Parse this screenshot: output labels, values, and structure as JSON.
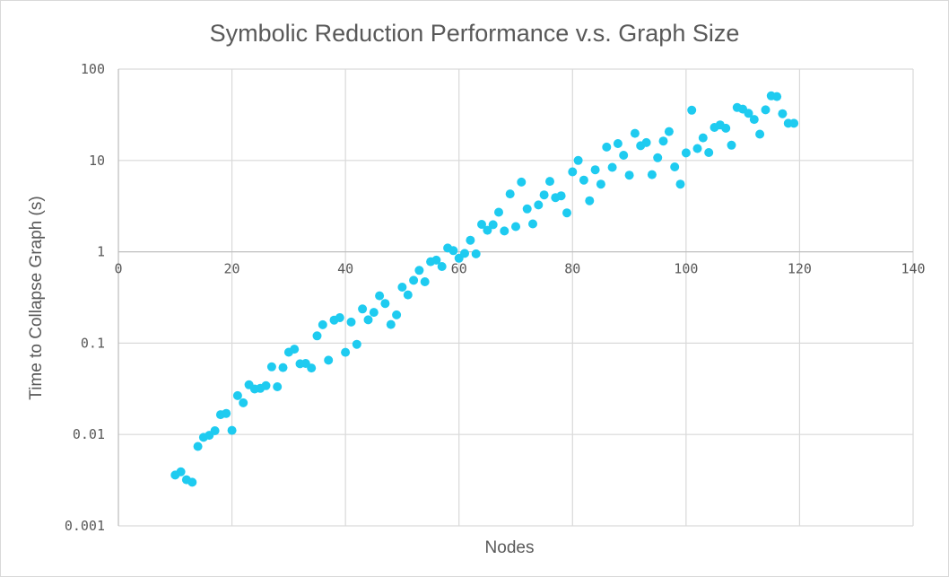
{
  "chart_data": {
    "type": "scatter",
    "title": "Symbolic Reduction Performance v.s. Graph Size",
    "xlabel": "Nodes",
    "ylabel": "Time to Collapse Graph (s)",
    "xlim": [
      0,
      140
    ],
    "ylim": [
      0.001,
      100
    ],
    "y_scale": "log",
    "grid": true,
    "legend": "none",
    "marker_color": "#1ecbf0",
    "x_ticks": [
      "0",
      "20",
      "40",
      "60",
      "80",
      "100",
      "120",
      "140"
    ],
    "x_tick_values": [
      0,
      20,
      40,
      60,
      80,
      100,
      120,
      140
    ],
    "y_ticks": [
      "0.001",
      "0.01",
      "0.1",
      "1",
      "10",
      "100"
    ],
    "y_tick_values": [
      0.001,
      0.01,
      0.1,
      1,
      10,
      100
    ],
    "points": [
      [
        10,
        0.0036
      ],
      [
        11,
        0.0039
      ],
      [
        12,
        0.0032
      ],
      [
        13,
        0.003
      ],
      [
        14,
        0.0074
      ],
      [
        15,
        0.0093
      ],
      [
        16,
        0.0098
      ],
      [
        17,
        0.011
      ],
      [
        18,
        0.0165
      ],
      [
        19,
        0.017
      ],
      [
        20,
        0.0111
      ],
      [
        21,
        0.0266
      ],
      [
        22,
        0.0222
      ],
      [
        23,
        0.035
      ],
      [
        24,
        0.0315
      ],
      [
        25,
        0.032
      ],
      [
        26,
        0.0342
      ],
      [
        27,
        0.055
      ],
      [
        28,
        0.0333
      ],
      [
        29,
        0.054
      ],
      [
        30,
        0.0796
      ],
      [
        31,
        0.086
      ],
      [
        32,
        0.0595
      ],
      [
        33,
        0.06
      ],
      [
        34,
        0.0534
      ],
      [
        35,
        0.12
      ],
      [
        36,
        0.159
      ],
      [
        37,
        0.065
      ],
      [
        38,
        0.179
      ],
      [
        39,
        0.19
      ],
      [
        40,
        0.0794
      ],
      [
        41,
        0.17
      ],
      [
        42,
        0.0972
      ],
      [
        43,
        0.237
      ],
      [
        44,
        0.18
      ],
      [
        45,
        0.217
      ],
      [
        46,
        0.33
      ],
      [
        47,
        0.272
      ],
      [
        48,
        0.16
      ],
      [
        49,
        0.204
      ],
      [
        50,
        0.41
      ],
      [
        51,
        0.338
      ],
      [
        52,
        0.487
      ],
      [
        53,
        0.626
      ],
      [
        54,
        0.47
      ],
      [
        55,
        0.78
      ],
      [
        56,
        0.81
      ],
      [
        57,
        0.69
      ],
      [
        58,
        1.1
      ],
      [
        59,
        1.03
      ],
      [
        60,
        0.85
      ],
      [
        61,
        0.96
      ],
      [
        62,
        1.34
      ],
      [
        63,
        0.95
      ],
      [
        64,
        2.0
      ],
      [
        65,
        1.72
      ],
      [
        66,
        1.98
      ],
      [
        67,
        2.71
      ],
      [
        68,
        1.69
      ],
      [
        69,
        4.3
      ],
      [
        70,
        1.89
      ],
      [
        71,
        5.8
      ],
      [
        72,
        2.95
      ],
      [
        73,
        2.02
      ],
      [
        74,
        3.26
      ],
      [
        75,
        4.2
      ],
      [
        76,
        5.9
      ],
      [
        77,
        3.92
      ],
      [
        78,
        4.1
      ],
      [
        79,
        2.67
      ],
      [
        80,
        7.5
      ],
      [
        81,
        10.0
      ],
      [
        82,
        6.1
      ],
      [
        83,
        3.62
      ],
      [
        84,
        7.9
      ],
      [
        85,
        5.5
      ],
      [
        86,
        14.0
      ],
      [
        87,
        8.4
      ],
      [
        88,
        15.3
      ],
      [
        89,
        11.4
      ],
      [
        90,
        6.9
      ],
      [
        91,
        19.8
      ],
      [
        92,
        14.5
      ],
      [
        93,
        15.7
      ],
      [
        94,
        7.0
      ],
      [
        95,
        10.7
      ],
      [
        96,
        16.3
      ],
      [
        97,
        20.7
      ],
      [
        98,
        8.5
      ],
      [
        99,
        5.5
      ],
      [
        100,
        12.1
      ],
      [
        101,
        35.5
      ],
      [
        102,
        13.5
      ],
      [
        103,
        17.7
      ],
      [
        104,
        12.2
      ],
      [
        105,
        23.0
      ],
      [
        106,
        24.5
      ],
      [
        107,
        22.5
      ],
      [
        108,
        14.7
      ],
      [
        109,
        38.0
      ],
      [
        110,
        36.5
      ],
      [
        111,
        32.8
      ],
      [
        112,
        28.1
      ],
      [
        113,
        19.4
      ],
      [
        114,
        35.8
      ],
      [
        115,
        51.0
      ],
      [
        116,
        50.0
      ],
      [
        117,
        32.5
      ],
      [
        118,
        25.5
      ],
      [
        119,
        25.5
      ]
    ]
  }
}
